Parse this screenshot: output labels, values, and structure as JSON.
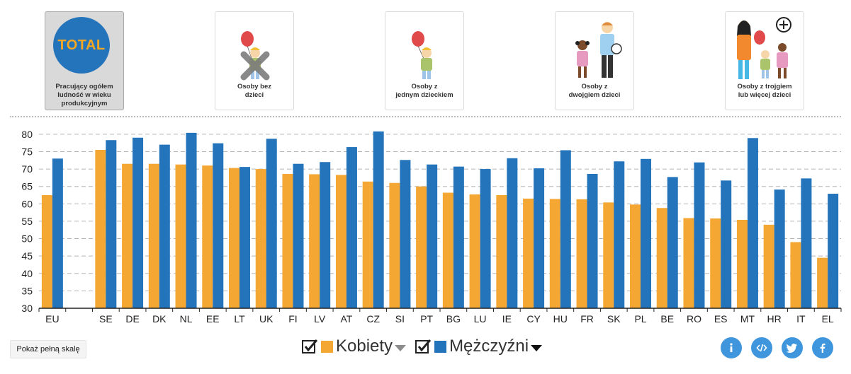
{
  "filters": [
    {
      "id": "total",
      "active": true,
      "badge_text": "TOTAL",
      "label_lines": [
        "Pracujący ogółem",
        "ludność w wieku",
        "produkcyjnym"
      ]
    },
    {
      "id": "no-children",
      "active": false,
      "label_lines": [
        "Osoby bez",
        "dzieci"
      ]
    },
    {
      "id": "one-child",
      "active": false,
      "label_lines": [
        "Osoby z",
        "jednym dzieckiem"
      ]
    },
    {
      "id": "two-children",
      "active": false,
      "label_lines": [
        "Osoby z",
        "dwojgiem dzieci"
      ]
    },
    {
      "id": "three-plus-children",
      "active": false,
      "label_lines": [
        "Osoby z trojgiem",
        "lub więcej dzieci"
      ]
    }
  ],
  "chart_data": {
    "type": "bar",
    "categories": [
      "EU",
      "",
      "SE",
      "DE",
      "DK",
      "NL",
      "EE",
      "LT",
      "UK",
      "FI",
      "LV",
      "AT",
      "CZ",
      "SI",
      "PT",
      "BG",
      "LU",
      "IE",
      "CY",
      "HU",
      "FR",
      "SK",
      "PL",
      "BE",
      "RO",
      "ES",
      "MT",
      "HR",
      "IT",
      "EL"
    ],
    "series": [
      {
        "name": "Kobiety",
        "color": "#f5a733",
        "values": [
          62.5,
          null,
          75.5,
          71.5,
          71.5,
          71.3,
          71.0,
          70.3,
          70.0,
          68.6,
          68.5,
          68.3,
          66.4,
          66.0,
          65.0,
          63.2,
          62.7,
          62.5,
          61.5,
          61.4,
          61.3,
          60.4,
          59.8,
          58.8,
          55.9,
          55.8,
          55.4,
          54.0,
          49.0,
          44.5
        ]
      },
      {
        "name": "Mężczyźni",
        "color": "#2474bb",
        "values": [
          73.0,
          null,
          78.3,
          79.0,
          77.0,
          80.4,
          77.4,
          70.6,
          78.7,
          71.5,
          72.0,
          76.3,
          80.8,
          72.6,
          71.3,
          70.7,
          70.0,
          73.1,
          70.2,
          75.4,
          68.6,
          72.2,
          72.9,
          67.7,
          71.9,
          66.7,
          78.9,
          64.1,
          67.3,
          62.9
        ]
      }
    ],
    "ylim": [
      30,
      82
    ],
    "yticks": [
      30,
      35,
      40,
      45,
      50,
      55,
      60,
      65,
      70,
      75,
      80
    ],
    "grid": true,
    "title": "",
    "xlabel": "",
    "ylabel": ""
  },
  "legend": {
    "items": [
      {
        "label": "Kobiety",
        "color": "#f5a733",
        "checked": true
      },
      {
        "label": "Mężczyźni",
        "color": "#2474bb",
        "checked": true
      }
    ]
  },
  "controls": {
    "full_scale_label": "Pokaż pełną skalę"
  },
  "share": [
    {
      "name": "info-icon",
      "glyph": "i"
    },
    {
      "name": "embed-code-icon",
      "glyph": "</>"
    },
    {
      "name": "twitter-icon",
      "glyph": "twitter"
    },
    {
      "name": "facebook-icon",
      "glyph": "f"
    }
  ]
}
